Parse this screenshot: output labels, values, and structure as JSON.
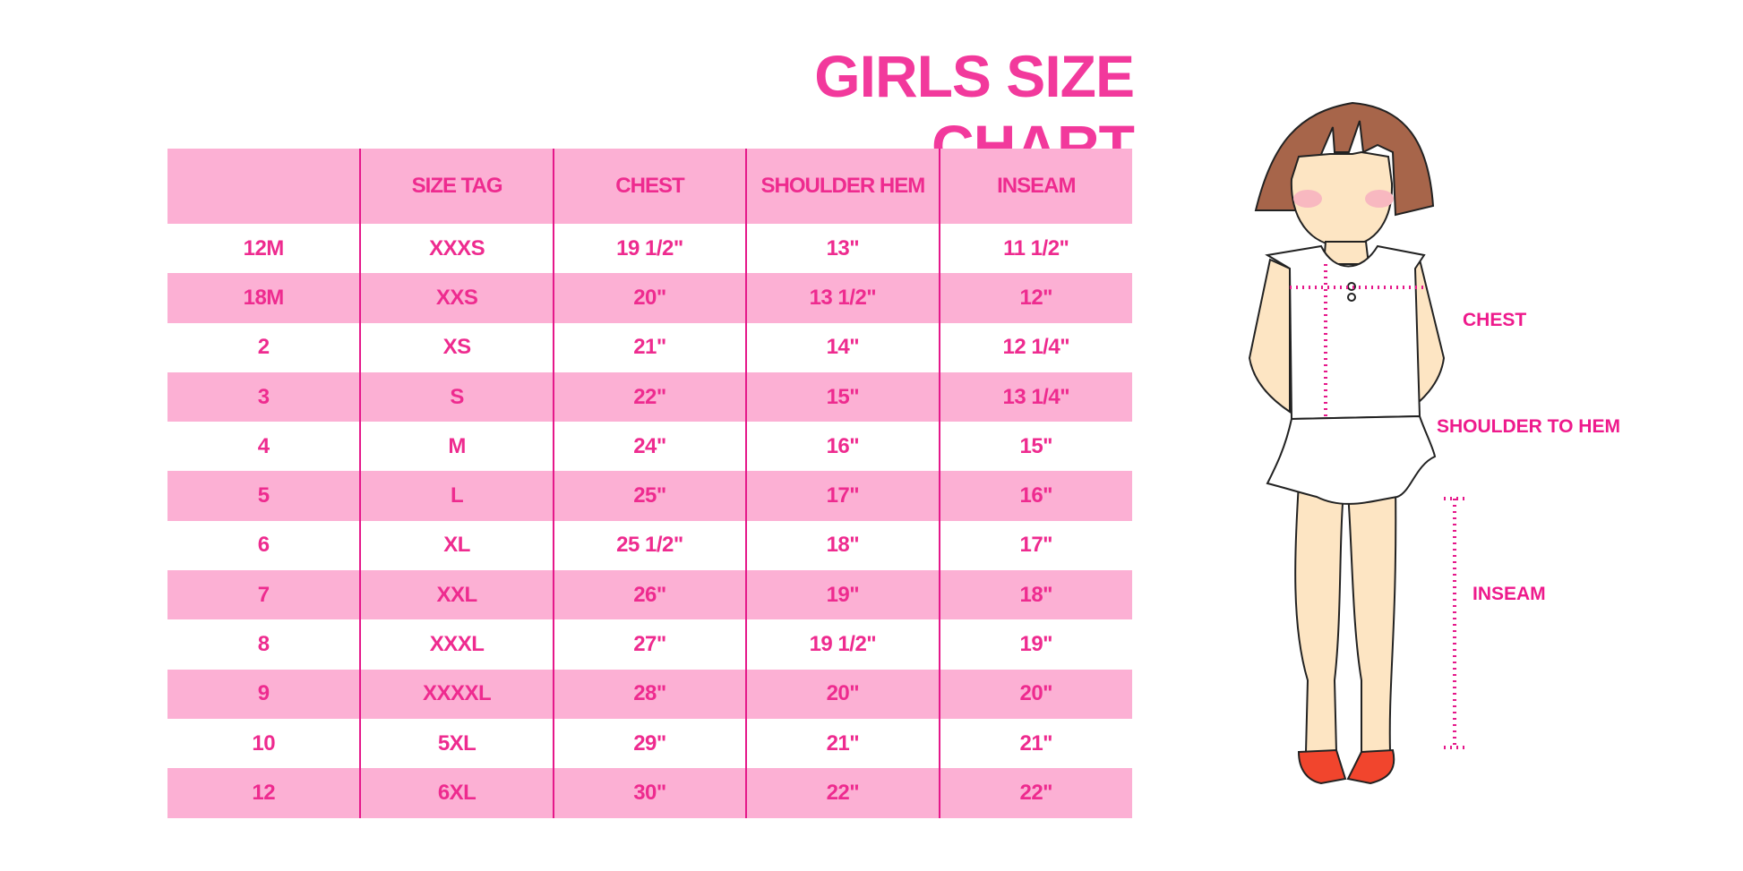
{
  "title": "GIRLS SIZE CHART",
  "table": {
    "headers": [
      "",
      "SIZE TAG",
      "CHEST",
      "SHOULDER HEM",
      "INSEAM"
    ],
    "rows": [
      [
        "12M",
        "XXXS",
        "19 1/2\"",
        "13\"",
        "11 1/2\""
      ],
      [
        "18M",
        "XXS",
        "20\"",
        "13 1/2\"",
        "12\""
      ],
      [
        "2",
        "XS",
        "21\"",
        "14\"",
        "12 1/4\""
      ],
      [
        "3",
        "S",
        "22\"",
        "15\"",
        "13 1/4\""
      ],
      [
        "4",
        "M",
        "24\"",
        "16\"",
        "15\""
      ],
      [
        "5",
        "L",
        "25\"",
        "17\"",
        "16\""
      ],
      [
        "6",
        "XL",
        "25 1/2\"",
        "18\"",
        "17\""
      ],
      [
        "7",
        "XXL",
        "26\"",
        "19\"",
        "18\""
      ],
      [
        "8",
        "XXXL",
        "27\"",
        "19 1/2\"",
        "19\""
      ],
      [
        "9",
        "XXXXL",
        "28\"",
        "20\"",
        "20\""
      ],
      [
        "10",
        "5XL",
        "29\"",
        "21\"",
        "21\""
      ],
      [
        "12",
        "6XL",
        "30\"",
        "22\"",
        "22\""
      ]
    ]
  },
  "figure": {
    "labels": {
      "chest": "CHEST",
      "shoulder_to_hem": "SHOULDER TO HEM",
      "inseam": "INSEAM"
    }
  },
  "colors": {
    "accent": "#f2399c",
    "row_pink": "#fcb0d4",
    "divider": "#e5188a"
  }
}
